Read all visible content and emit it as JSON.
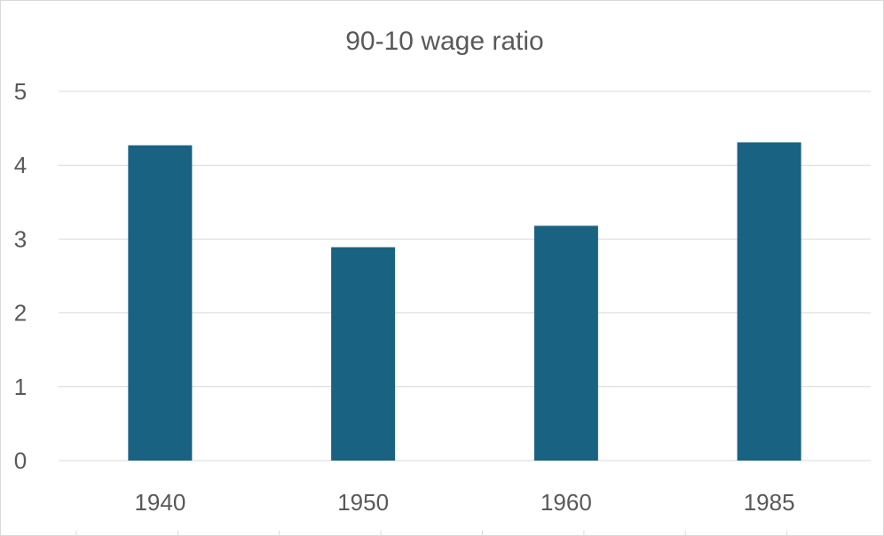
{
  "chart_data": {
    "type": "bar",
    "title": "90-10 wage ratio",
    "xlabel": "",
    "ylabel": "",
    "categories": [
      "1940",
      "1950",
      "1960",
      "1985"
    ],
    "values": [
      4.27,
      2.89,
      3.18,
      4.31
    ],
    "ylim": [
      0,
      5
    ],
    "yticks": [
      "0",
      "1",
      "2",
      "3",
      "4",
      "5"
    ],
    "grid": true,
    "legend": "none",
    "bar_color": "#1a6282",
    "grid_color": "#d9d9d9",
    "text_color": "#595959"
  }
}
